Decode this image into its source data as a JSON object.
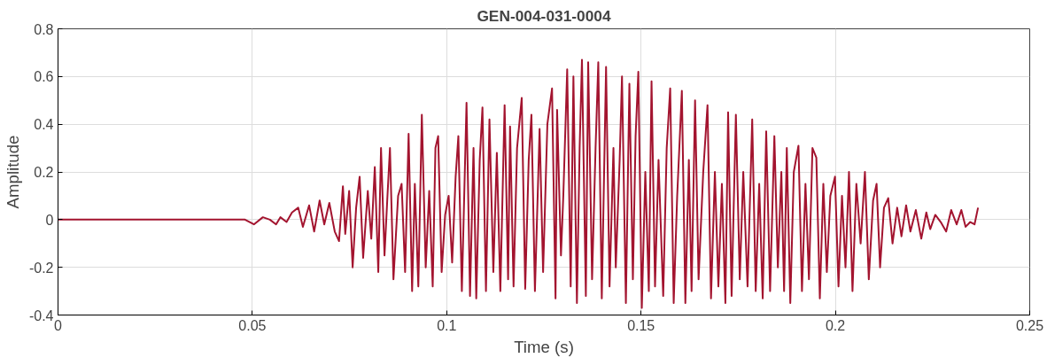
{
  "chart_data": {
    "type": "line",
    "title": "GEN-004-031-0004",
    "xlabel": "Time (s)",
    "ylabel": "Amplitude",
    "xlim": [
      0,
      0.25
    ],
    "ylim": [
      -0.4,
      0.8
    ],
    "xticks": [
      0,
      0.05,
      0.1,
      0.15,
      0.2,
      0.25
    ],
    "yticks": [
      -0.4,
      -0.2,
      0,
      0.2,
      0.4,
      0.6,
      0.8
    ],
    "grid": true,
    "line_style": "solid",
    "series": [
      {
        "color": "#a3142f",
        "x": [
          0,
          0.0298,
          0.0435,
          0.0481,
          0.0504,
          0.0527,
          0.0545,
          0.0561,
          0.0572,
          0.0588,
          0.0602,
          0.0618,
          0.063,
          0.0646,
          0.0659,
          0.0673,
          0.0685,
          0.0698,
          0.0712,
          0.0723,
          0.0733,
          0.0739,
          0.0749,
          0.0758,
          0.0767,
          0.0776,
          0.0785,
          0.0797,
          0.0806,
          0.0815,
          0.0824,
          0.0831,
          0.084,
          0.0847,
          0.0854,
          0.0863,
          0.0875,
          0.0884,
          0.0893,
          0.0902,
          0.0911,
          0.0918,
          0.0927,
          0.0936,
          0.0946,
          0.0955,
          0.0964,
          0.0971,
          0.0978,
          0.0987,
          0.0996,
          0.1005,
          0.1014,
          0.1023,
          0.103,
          0.1039,
          0.1051,
          0.106,
          0.1069,
          0.1076,
          0.1085,
          0.1092,
          0.1101,
          0.111,
          0.112,
          0.1129,
          0.1138,
          0.1149,
          0.1158,
          0.1163,
          0.1172,
          0.1181,
          0.1193,
          0.1202,
          0.1211,
          0.1218,
          0.1227,
          0.1239,
          0.1248,
          0.1259,
          0.1271,
          0.128,
          0.1284,
          0.1294,
          0.13,
          0.131,
          0.1319,
          0.1326,
          0.1335,
          0.1342,
          0.1348,
          0.1358,
          0.1364,
          0.1374,
          0.1383,
          0.139,
          0.1399,
          0.141,
          0.1419,
          0.1429,
          0.1435,
          0.1445,
          0.1451,
          0.1461,
          0.147,
          0.1479,
          0.1486,
          0.1493,
          0.1502,
          0.1511,
          0.152,
          0.1527,
          0.1536,
          0.1545,
          0.1557,
          0.1566,
          0.1575,
          0.1584,
          0.1593,
          0.1605,
          0.1614,
          0.1623,
          0.163,
          0.1639,
          0.1648,
          0.166,
          0.1671,
          0.168,
          0.169,
          0.1699,
          0.1708,
          0.1717,
          0.1724,
          0.1733,
          0.1744,
          0.1754,
          0.1763,
          0.1774,
          0.1786,
          0.1795,
          0.1804,
          0.1813,
          0.1822,
          0.1832,
          0.1843,
          0.1852,
          0.1861,
          0.1868,
          0.1875,
          0.1884,
          0.1893,
          0.1905,
          0.1914,
          0.1923,
          0.1932,
          0.1941,
          0.1951,
          0.196,
          0.1969,
          0.1978,
          0.1987,
          0.1999,
          0.2008,
          0.2017,
          0.2026,
          0.2035,
          0.2044,
          0.2054,
          0.2065,
          0.2076,
          0.2086,
          0.2097,
          0.2106,
          0.2115,
          0.2125,
          0.2136,
          0.2147,
          0.2159,
          0.217,
          0.2182,
          0.2193,
          0.2207,
          0.2221,
          0.2234,
          0.2244,
          0.2257,
          0.2271,
          0.2285,
          0.2298,
          0.2312,
          0.2324,
          0.2335,
          0.2347,
          0.2358,
          0.2367
        ],
        "values": [
          0,
          0,
          0,
          0,
          -0.02,
          0.01,
          0,
          -0.02,
          0.01,
          -0.01,
          0.03,
          0.05,
          -0.03,
          0.06,
          -0.05,
          0.08,
          -0.02,
          0.07,
          -0.05,
          -0.09,
          0.14,
          -0.06,
          0.12,
          -0.2,
          0.05,
          0.18,
          -0.16,
          0.12,
          -0.08,
          0.22,
          -0.22,
          0.3,
          -0.15,
          0.08,
          0.3,
          -0.25,
          0.1,
          0.15,
          -0.22,
          0.36,
          -0.3,
          0.15,
          -0.28,
          0.44,
          -0.2,
          0.12,
          -0.28,
          0.3,
          0.35,
          -0.22,
          0.02,
          0.1,
          -0.18,
          0.18,
          0.35,
          -0.3,
          0.49,
          -0.32,
          0.3,
          -0.33,
          0.25,
          0.47,
          -0.3,
          0.42,
          -0.22,
          0.28,
          -0.3,
          0.48,
          -0.25,
          0.39,
          -0.28,
          0.3,
          0.51,
          -0.29,
          0.25,
          0.44,
          -0.3,
          0.38,
          -0.22,
          0.4,
          0.55,
          -0.33,
          0.46,
          -0.15,
          0.1,
          0.63,
          -0.28,
          0.6,
          -0.35,
          0.3,
          0.67,
          -0.32,
          0.66,
          -0.25,
          0.3,
          0.66,
          -0.33,
          0.64,
          -0.28,
          0.3,
          -0.2,
          0.25,
          0.6,
          -0.35,
          0.57,
          -0.25,
          0.35,
          0.62,
          -0.37,
          0.2,
          -0.3,
          0.58,
          -0.28,
          0.25,
          -0.32,
          0.3,
          0.55,
          -0.35,
          0.1,
          0.54,
          -0.35,
          0.25,
          -0.3,
          0.5,
          -0.25,
          0.2,
          0.48,
          -0.33,
          0.2,
          -0.28,
          0.15,
          -0.35,
          0.45,
          -0.32,
          0.44,
          -0.25,
          0.2,
          -0.28,
          0.42,
          -0.3,
          0.15,
          -0.33,
          0.37,
          -0.3,
          0.35,
          -0.2,
          0.2,
          -0.3,
          0.3,
          -0.35,
          0.2,
          0.31,
          -0.3,
          0.15,
          -0.25,
          0.3,
          0.26,
          -0.33,
          0.15,
          -0.22,
          0.1,
          0.18,
          -0.28,
          0.1,
          -0.2,
          0.2,
          -0.3,
          0.15,
          -0.1,
          0.2,
          -0.25,
          0.08,
          0.15,
          -0.2,
          0.05,
          0.09,
          -0.1,
          0.05,
          -0.07,
          0.06,
          -0.05,
          0.04,
          -0.08,
          0.03,
          -0.04,
          0.02,
          -0.01,
          -0.05,
          0.04,
          -0.02,
          0.04,
          -0.03,
          -0.01,
          -0.02,
          0.05
        ]
      }
    ]
  }
}
